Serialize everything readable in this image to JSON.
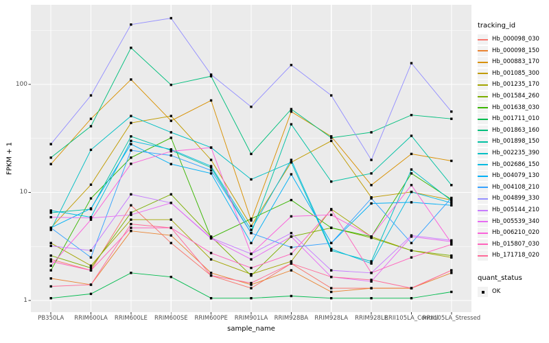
{
  "chart": {
    "xlabel": "sample_name",
    "ylabel": "FPKM + 1",
    "legend_title": "tracking_id",
    "legend2_title": "quant_status",
    "legend2_items": [
      "OK"
    ],
    "panel_bg": "#EBEBEB",
    "grid_color": "#FFFFFF",
    "tick_text_color": "#4d4d4d"
  },
  "chart_data": {
    "type": "line",
    "yscale": "log10",
    "ylim": [
      1,
      450
    ],
    "y_ticks": [
      1,
      10,
      100
    ],
    "grid": true,
    "legend_position": "right",
    "title": "",
    "xlabel": "sample_name",
    "ylabel": "FPKM + 1",
    "x_categories": [
      "PB350LA",
      "RRIM600LA",
      "RRIM600LE",
      "RRIM600SE",
      "RRIM600PE",
      "RRIM901LA",
      "RRIM928BA",
      "RRIM928LA",
      "RRIM928LE",
      "RRII105LA_Control",
      "RRII105LA_Stressed"
    ],
    "point_marker": "black-square",
    "series": [
      {
        "name": "Hb_000098_030",
        "color": "#F8766D",
        "values": [
          2.4,
          1.9,
          7.6,
          3.4,
          1.7,
          1.3,
          2.2,
          1.3,
          1.3,
          1.3,
          1.9
        ]
      },
      {
        "name": "Hb_000098_150",
        "color": "#EA8331",
        "values": [
          1.6,
          1.4,
          4.4,
          4.0,
          1.8,
          1.4,
          1.9,
          1.2,
          1.3,
          1.3,
          1.8
        ]
      },
      {
        "name": "Hb_000883_170",
        "color": "#D89000",
        "values": [
          18.3,
          48,
          111,
          46,
          71,
          5.5,
          56,
          33,
          11.7,
          22.7,
          19.6
        ]
      },
      {
        "name": "Hb_001085_300",
        "color": "#C09B00",
        "values": [
          4.7,
          11.8,
          44,
          51,
          20,
          4.9,
          19,
          30,
          9.0,
          10.1,
          8.5
        ]
      },
      {
        "name": "Hb_001235_170",
        "color": "#A3A500",
        "values": [
          3.4,
          2.1,
          5.6,
          5.6,
          2.4,
          1.75,
          2.3,
          7.0,
          3.9,
          2.9,
          2.5
        ]
      },
      {
        "name": "Hb_001584_260",
        "color": "#7CAE00",
        "values": [
          2.6,
          2.0,
          6.5,
          9.6,
          3.9,
          1.7,
          3.9,
          4.7,
          3.8,
          2.9,
          2.6
        ]
      },
      {
        "name": "Hb_001638_030",
        "color": "#39B600",
        "values": [
          1.9,
          8.8,
          21,
          32,
          3.8,
          5.7,
          8.5,
          4.7,
          3.9,
          15,
          8.6
        ]
      },
      {
        "name": "Hb_001711_010",
        "color": "#00BB4E",
        "values": [
          1.05,
          1.15,
          1.8,
          1.65,
          1.05,
          1.05,
          1.1,
          1.05,
          1.05,
          1.05,
          1.2
        ]
      },
      {
        "name": "Hb_001863_160",
        "color": "#00BF7D",
        "values": [
          21,
          41,
          218,
          99,
          119,
          22.7,
          59,
          32,
          36,
          52,
          48
        ]
      },
      {
        "name": "Hb_001898_150",
        "color": "#00C1A3",
        "values": [
          6.5,
          7.0,
          33,
          24.5,
          17,
          4.2,
          42.7,
          12.6,
          15,
          33.4,
          11.7
        ]
      },
      {
        "name": "Hb_002235_390",
        "color": "#00BFC4",
        "values": [
          4.5,
          24.8,
          51,
          36,
          26,
          13.2,
          19,
          2.9,
          2.3,
          16.3,
          8.4
        ]
      },
      {
        "name": "Hb_002686_150",
        "color": "#00BAE0",
        "values": [
          6.8,
          5.9,
          30,
          25,
          17.5,
          4.5,
          20,
          3.0,
          2.2,
          10.1,
          8.0
        ]
      },
      {
        "name": "Hb_004079_130",
        "color": "#00B0F6",
        "values": [
          4.7,
          7.1,
          28,
          18.3,
          15,
          3.4,
          14.7,
          3.4,
          7.9,
          8.1,
          7.6
        ]
      },
      {
        "name": "Hb_004108_210",
        "color": "#35A2FF",
        "values": [
          4.7,
          2.5,
          24.5,
          22,
          16,
          4.2,
          3.1,
          3.4,
          8.8,
          3.4,
          8.9
        ]
      },
      {
        "name": "Hb_004899_330",
        "color": "#9590FF",
        "values": [
          28,
          79,
          358,
          410,
          123,
          62,
          151,
          79,
          20,
          157,
          56
        ]
      },
      {
        "name": "Hb_005144_210",
        "color": "#C77CFF",
        "values": [
          3.2,
          2.9,
          9.6,
          8.0,
          3.8,
          2.7,
          4.2,
          1.9,
          1.8,
          4.0,
          3.6
        ]
      },
      {
        "name": "Hb_005539_340",
        "color": "#E76BF3",
        "values": [
          5.9,
          5.8,
          6.2,
          8.0,
          3.75,
          2.4,
          3.9,
          1.65,
          1.5,
          3.9,
          3.5
        ]
      },
      {
        "name": "Hb_006210_020",
        "color": "#FA62DB",
        "values": [
          2.1,
          5.6,
          18.4,
          24,
          26,
          2.7,
          6.0,
          6.2,
          3.9,
          11.7,
          3.4
        ]
      },
      {
        "name": "Hb_015807_030",
        "color": "#FF62BC",
        "values": [
          2.3,
          1.9,
          4.7,
          4.7,
          2.75,
          2.0,
          2.7,
          6.9,
          1.8,
          2.5,
          3.3
        ]
      },
      {
        "name": "Hb_171718_020",
        "color": "#FF6A98",
        "values": [
          1.35,
          1.4,
          5.1,
          4.7,
          1.7,
          1.45,
          2.2,
          1.65,
          1.55,
          1.3,
          1.9
        ]
      }
    ]
  }
}
